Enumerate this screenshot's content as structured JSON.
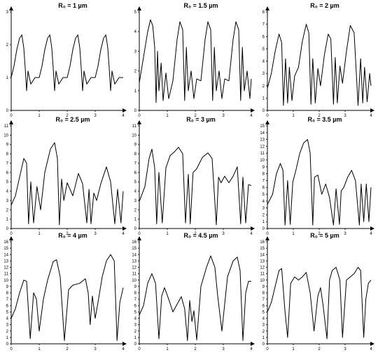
{
  "panel_titles": [
    "R₀ = 1 µm",
    "R₀ = 1.5 µm",
    "R₀ = 2 µm",
    "R₀ = 2.5 µm",
    "R₀ = 3 µm",
    "R₀ = 3.5 µm",
    "R₀ = 4 µm",
    "R₀ = 4.5 µm",
    "R₀ = 5 µm"
  ],
  "chart_data": [
    {
      "type": "line",
      "title": "R₀ = 1 µm",
      "xlim": [
        0,
        4
      ],
      "ylim": [
        0,
        3
      ],
      "x_ticks": [
        "0",
        "1",
        "2",
        "3",
        "4"
      ],
      "y_ticks": [
        "0",
        "1",
        "2",
        "3"
      ],
      "series": [
        {
          "x": [
            0,
            0.1,
            0.2,
            0.3,
            0.38,
            0.45,
            0.5,
            0.55,
            0.6,
            0.7,
            0.85,
            1.0,
            1.1,
            1.2,
            1.3,
            1.38,
            1.45,
            1.5,
            1.55,
            1.6,
            1.7,
            1.85,
            2.0,
            2.1,
            2.2,
            2.3,
            2.38,
            2.45,
            2.5,
            2.55,
            2.6,
            2.7,
            2.85,
            3.0,
            3.1,
            3.2,
            3.3,
            3.38,
            3.45,
            3.5,
            3.55,
            3.6,
            3.7,
            3.85,
            4.0
          ],
          "y": [
            1.0,
            1.35,
            1.85,
            2.2,
            2.3,
            1.9,
            1.3,
            0.6,
            1.2,
            0.8,
            1.0,
            1.0,
            1.35,
            1.85,
            2.2,
            2.3,
            1.9,
            1.3,
            0.6,
            1.2,
            0.8,
            1.0,
            1.0,
            1.35,
            1.85,
            2.2,
            2.3,
            1.9,
            1.3,
            0.6,
            1.2,
            0.8,
            1.0,
            1.0,
            1.35,
            1.85,
            2.2,
            2.3,
            1.9,
            1.3,
            0.6,
            1.2,
            0.8,
            1.0,
            1.0
          ]
        }
      ]
    },
    {
      "type": "line",
      "title": "R₀ = 1.5 µm",
      "xlim": [
        0,
        4
      ],
      "ylim": [
        0,
        5
      ],
      "x_ticks": [
        "0",
        "1",
        "2",
        "3",
        "4"
      ],
      "y_ticks": [
        "0",
        "1",
        "2",
        "3",
        "4",
        "5"
      ],
      "series": [
        {
          "x": [
            0,
            0.15,
            0.3,
            0.4,
            0.48,
            0.55,
            0.6,
            0.65,
            0.7,
            0.78,
            0.85,
            0.95,
            1.05,
            1.2,
            1.35,
            1.45,
            1.55,
            1.62,
            1.68,
            1.75,
            1.85,
            1.95,
            2.05,
            2.2,
            2.35,
            2.45,
            2.55,
            2.62,
            2.68,
            2.75,
            2.85,
            2.95,
            3.05,
            3.2,
            3.35,
            3.45,
            3.55,
            3.62,
            3.68,
            3.75,
            3.85,
            3.95,
            4.0
          ],
          "y": [
            1.4,
            2.7,
            4.0,
            4.6,
            4.3,
            3.2,
            0.4,
            3.0,
            1.0,
            2.4,
            0.5,
            1.9,
            0.6,
            1.5,
            3.6,
            4.5,
            4.1,
            0.5,
            3.2,
            1.0,
            2.0,
            0.6,
            1.6,
            1.5,
            3.6,
            4.5,
            4.1,
            0.5,
            3.2,
            1.0,
            2.0,
            0.6,
            1.6,
            1.5,
            3.6,
            4.5,
            4.1,
            0.5,
            3.2,
            1.0,
            2.0,
            0.6,
            1.6
          ]
        }
      ]
    },
    {
      "type": "line",
      "title": "R₀ = 2 µm",
      "xlim": [
        0,
        4
      ],
      "ylim": [
        0,
        8
      ],
      "x_ticks": [
        "0",
        "1",
        "2",
        "3",
        "4"
      ],
      "y_ticks": [
        "0",
        "1",
        "2",
        "3",
        "4",
        "5",
        "6",
        "7",
        "8"
      ],
      "series": [
        {
          "x": [
            0,
            0.15,
            0.3,
            0.45,
            0.55,
            0.62,
            0.7,
            0.78,
            0.85,
            0.95,
            1.05,
            1.2,
            1.35,
            1.5,
            1.6,
            1.68,
            1.75,
            1.85,
            1.95,
            2.05,
            2.2,
            2.35,
            2.45,
            2.55,
            2.62,
            2.7,
            2.8,
            2.9,
            3.05,
            3.2,
            3.35,
            3.5,
            3.6,
            3.68,
            3.75,
            3.85,
            3.95,
            4.0
          ],
          "y": [
            1.8,
            3.0,
            4.8,
            6.2,
            5.5,
            0.4,
            4.2,
            0.6,
            3.5,
            0.8,
            2.8,
            3.5,
            5.6,
            7.0,
            6.3,
            0.5,
            4.2,
            0.6,
            3.4,
            2.0,
            4.5,
            6.2,
            5.8,
            0.5,
            4.3,
            0.6,
            3.6,
            2.2,
            4.8,
            6.9,
            6.3,
            0.4,
            4.2,
            0.6,
            3.5,
            0.7,
            3.0,
            2.0
          ]
        }
      ]
    },
    {
      "type": "line",
      "title": "R₀ = 2.5 µm",
      "xlim": [
        0,
        4
      ],
      "ylim": [
        0,
        11
      ],
      "x_ticks": [
        "0",
        "1",
        "2",
        "3",
        "4"
      ],
      "y_ticks": [
        "0",
        "1",
        "2",
        "3",
        "4",
        "5",
        "6",
        "7",
        "8",
        "9",
        "10",
        "11"
      ],
      "series": [
        {
          "x": [
            0,
            0.15,
            0.3,
            0.45,
            0.55,
            0.62,
            0.7,
            0.8,
            0.92,
            1.05,
            1.2,
            1.4,
            1.55,
            1.65,
            1.72,
            1.8,
            1.88,
            2.0,
            2.2,
            2.4,
            2.55,
            2.7,
            2.78,
            2.85,
            2.95,
            3.05,
            3.2,
            3.4,
            3.55,
            3.7,
            3.8,
            3.92,
            4.0
          ],
          "y": [
            2.5,
            3.5,
            5.5,
            7.5,
            7.0,
            0.5,
            5.0,
            0.6,
            4.5,
            2.0,
            6.0,
            8.5,
            9.2,
            7.5,
            0.4,
            5.3,
            3.0,
            4.9,
            3.5,
            5.9,
            4.8,
            0.6,
            4.2,
            0.5,
            3.8,
            3.0,
            4.8,
            6.6,
            5.0,
            0.5,
            4.2,
            0.6,
            4.0
          ]
        }
      ]
    },
    {
      "type": "line",
      "title": "R₀ = 3 µm",
      "xlim": [
        0,
        4
      ],
      "ylim": [
        0,
        11
      ],
      "x_ticks": [
        "0",
        "1",
        "2",
        "3",
        "4"
      ],
      "y_ticks": [
        "0",
        "1",
        "2",
        "3",
        "4",
        "5",
        "6",
        "7",
        "8",
        "9",
        "10",
        "11"
      ],
      "series": [
        {
          "x": [
            0,
            0.2,
            0.35,
            0.45,
            0.55,
            0.62,
            0.7,
            0.82,
            0.95,
            1.1,
            1.25,
            1.4,
            1.55,
            1.65,
            1.75,
            1.82,
            1.92,
            2.05,
            2.25,
            2.45,
            2.6,
            2.75,
            2.83,
            2.92,
            3.05,
            3.2,
            3.35,
            3.5,
            3.62,
            3.7,
            3.8,
            3.9,
            4.0
          ],
          "y": [
            2.9,
            4.5,
            7.5,
            8.5,
            6.5,
            0.5,
            6.0,
            0.6,
            6.5,
            7.8,
            8.2,
            8.7,
            8.0,
            0.6,
            5.8,
            0.5,
            6.0,
            6.4,
            7.6,
            8.1,
            7.5,
            0.4,
            5.5,
            4.9,
            5.6,
            4.9,
            5.6,
            6.6,
            0.5,
            5.5,
            0.6,
            4.7,
            4.6
          ]
        }
      ]
    },
    {
      "type": "line",
      "title": "R₀ = 3.5 µm",
      "xlim": [
        0,
        4
      ],
      "ylim": [
        0,
        15
      ],
      "x_ticks": [
        "0",
        "1",
        "2",
        "3",
        "4"
      ],
      "y_ticks": [
        "0",
        "1",
        "2",
        "3",
        "4",
        "5",
        "6",
        "7",
        "8",
        "9",
        "10",
        "11",
        "12",
        "13",
        "14",
        "15"
      ],
      "series": [
        {
          "x": [
            0,
            0.2,
            0.35,
            0.5,
            0.6,
            0.68,
            0.78,
            0.88,
            0.98,
            1.1,
            1.25,
            1.4,
            1.55,
            1.65,
            1.75,
            1.82,
            1.95,
            2.1,
            2.25,
            2.4,
            2.55,
            2.65,
            2.78,
            2.85,
            2.95,
            3.1,
            3.25,
            3.4,
            3.55,
            3.62,
            3.72,
            3.82,
            3.92,
            4.0
          ],
          "y": [
            3.5,
            5.0,
            8.0,
            9.5,
            8.5,
            0.5,
            7.0,
            0.6,
            6.8,
            8.5,
            11.0,
            12.5,
            13.0,
            11.0,
            0.5,
            7.5,
            7.8,
            5.0,
            6.5,
            4.5,
            0.5,
            5.8,
            0.6,
            5.5,
            6.0,
            7.5,
            8.5,
            7.0,
            0.5,
            6.5,
            1.0,
            6.5,
            1.0,
            6.0
          ]
        }
      ]
    },
    {
      "type": "line",
      "title": "R₀ = 4 µm",
      "xlim": [
        0,
        4
      ],
      "ylim": [
        0,
        16
      ],
      "x_ticks": [
        "0",
        "1",
        "2",
        "3",
        "4"
      ],
      "y_ticks": [
        "0",
        "1",
        "2",
        "3",
        "4",
        "5",
        "6",
        "7",
        "8",
        "9",
        "10",
        "11",
        "12",
        "13",
        "14",
        "15",
        "16"
      ],
      "series": [
        {
          "x": [
            0,
            0.15,
            0.3,
            0.45,
            0.55,
            0.68,
            0.8,
            0.9,
            1.0,
            1.15,
            1.3,
            1.5,
            1.62,
            1.75,
            1.9,
            2.05,
            2.2,
            2.45,
            2.65,
            2.75,
            2.82,
            2.9,
            3.0,
            3.1,
            3.25,
            3.4,
            3.55,
            3.68,
            3.78,
            3.88,
            4.0
          ],
          "y": [
            4.0,
            5.5,
            8.0,
            10.0,
            9.8,
            0.8,
            8.0,
            7.0,
            2.0,
            7.0,
            10.0,
            12.9,
            13.2,
            10.5,
            0.5,
            8.5,
            9.2,
            9.5,
            10.2,
            8.0,
            3.0,
            7.5,
            4.0,
            6.5,
            10.5,
            13.0,
            14.0,
            13.0,
            0.5,
            6.5,
            8.8
          ]
        }
      ]
    },
    {
      "type": "line",
      "title": "R₀ = 4.5 µm",
      "xlim": [
        0,
        4
      ],
      "ylim": [
        0,
        16
      ],
      "x_ticks": [
        "0",
        "1",
        "2",
        "3",
        "4"
      ],
      "y_ticks": [
        "0",
        "1",
        "2",
        "3",
        "4",
        "5",
        "6",
        "7",
        "8",
        "9",
        "10",
        "11",
        "12",
        "13",
        "14",
        "15",
        "16"
      ],
      "series": [
        {
          "x": [
            0,
            0.15,
            0.3,
            0.45,
            0.58,
            0.7,
            0.8,
            0.9,
            1.05,
            1.2,
            1.35,
            1.5,
            1.62,
            1.72,
            1.8,
            1.88,
            1.95,
            2.05,
            2.2,
            2.4,
            2.55,
            2.7,
            2.8,
            2.95,
            3.15,
            3.35,
            3.5,
            3.6,
            3.7,
            3.8,
            3.9,
            4.0
          ],
          "y": [
            4.5,
            6.0,
            9.5,
            11.0,
            9.5,
            0.8,
            7.5,
            8.8,
            7.0,
            5.0,
            6.2,
            7.4,
            5.5,
            0.5,
            6.8,
            3.5,
            5.2,
            0.6,
            9.0,
            12.0,
            13.8,
            12.0,
            7.5,
            2.0,
            10.5,
            13.0,
            13.6,
            11.5,
            0.5,
            8.0,
            9.8,
            9.8
          ]
        }
      ]
    },
    {
      "type": "line",
      "title": "R₀ = 5 µm",
      "xlim": [
        0,
        4
      ],
      "ylim": [
        0,
        16
      ],
      "x_ticks": [
        "0",
        "1",
        "2",
        "3",
        "4"
      ],
      "y_ticks": [
        "0",
        "1",
        "2",
        "3",
        "4",
        "5",
        "6",
        "7",
        "8",
        "9",
        "10",
        "11",
        "12",
        "13",
        "14",
        "15",
        "16"
      ],
      "series": [
        {
          "x": [
            0,
            0.15,
            0.3,
            0.45,
            0.55,
            0.68,
            0.78,
            0.9,
            1.05,
            1.2,
            1.35,
            1.5,
            1.65,
            1.8,
            1.95,
            2.05,
            2.15,
            2.3,
            2.4,
            2.5,
            2.65,
            2.8,
            2.9,
            3.05,
            3.2,
            3.35,
            3.5,
            3.6,
            3.72,
            3.8,
            3.9,
            4.0
          ],
          "y": [
            5.0,
            6.5,
            9.0,
            11.5,
            11.8,
            5.0,
            1.0,
            9.5,
            10.5,
            10.0,
            10.5,
            11.2,
            8.0,
            2.0,
            7.5,
            8.8,
            6.0,
            0.8,
            10.0,
            11.5,
            12.0,
            10.0,
            1.0,
            10.0,
            10.5,
            11.0,
            12.0,
            11.5,
            1.0,
            7.0,
            9.5,
            10.0
          ]
        }
      ]
    }
  ]
}
